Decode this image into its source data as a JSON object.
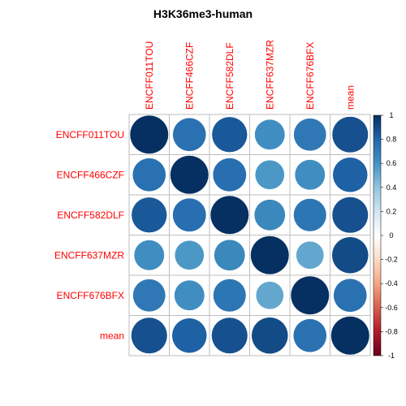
{
  "chart_data": {
    "type": "heatmap",
    "title": "H3K36me3-human",
    "variables": [
      "ENCFF011TOU",
      "ENCFF466CZF",
      "ENCFF582DLF",
      "ENCFF637MZR",
      "ENCFF676BFX",
      "mean"
    ],
    "matrix": [
      [
        1.0,
        0.75,
        0.85,
        0.62,
        0.72,
        0.88
      ],
      [
        0.75,
        1.0,
        0.76,
        0.58,
        0.62,
        0.82
      ],
      [
        0.85,
        0.76,
        1.0,
        0.65,
        0.73,
        0.88
      ],
      [
        0.62,
        0.58,
        0.65,
        1.0,
        0.52,
        0.9
      ],
      [
        0.72,
        0.62,
        0.73,
        0.52,
        1.0,
        0.75
      ],
      [
        0.88,
        0.82,
        0.88,
        0.9,
        0.75,
        1.0
      ]
    ],
    "colorbar": {
      "ticks": [
        "1",
        "0.8",
        "0.6",
        "0.4",
        "0.2",
        "0",
        "-0.2",
        "-0.4",
        "-0.6",
        "-0.8",
        "-1"
      ],
      "range": [
        -1,
        1
      ],
      "colors": [
        "#67001F",
        "#B2182B",
        "#D6604D",
        "#F4A582",
        "#FDDBC7",
        "#FFFFFF",
        "#D1E5F0",
        "#92C5DE",
        "#4393C3",
        "#2166AC",
        "#053061"
      ]
    },
    "label_color": "#FF0000",
    "grid_color": "#BEBEBE"
  }
}
